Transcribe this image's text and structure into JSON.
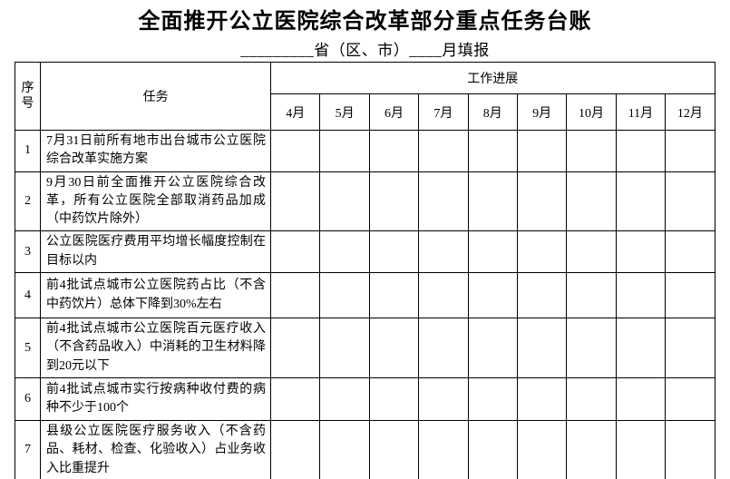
{
  "title": "全面推开公立医院综合改革部分重点任务台账",
  "subtitle": {
    "province_blank": "_________",
    "province_label": "省（区、市）",
    "month_blank": "____",
    "month_label": "月填报"
  },
  "table": {
    "headers": {
      "index": "序号",
      "index_chars": [
        "序",
        "号"
      ],
      "task": "任务",
      "progress": "工作进展",
      "months": [
        "4月",
        "5月",
        "6月",
        "7月",
        "8月",
        "9月",
        "10月",
        "11月",
        "12月"
      ]
    },
    "rows": [
      {
        "no": "1",
        "task": "7月31日前所有地市出台城市公立医院综合改革实施方案"
      },
      {
        "no": "2",
        "task": "9月30日前全面推开公立医院综合改革，所有公立医院全部取消药品加成（中药饮片除外）"
      },
      {
        "no": "3",
        "task": "公立医院医疗费用平均增长幅度控制在目标以内"
      },
      {
        "no": "4",
        "task": "前4批试点城市公立医院药占比（不含中药饮片）总体下降到30%左右"
      },
      {
        "no": "5",
        "task": "前4批试点城市公立医院百元医疗收入（不含药品收入）中消耗的卫生材料降到20元以下"
      },
      {
        "no": "6",
        "task": "前4批试点城市实行按病种收付费的病种不少于100个"
      },
      {
        "no": "7",
        "task": "县级公立医院医疗服务收入（不含药品、耗材、检查、化验收入）占业务收入比重提升"
      }
    ]
  },
  "colors": {
    "border": "#000000",
    "text": "#000000",
    "background": "#ffffff"
  }
}
